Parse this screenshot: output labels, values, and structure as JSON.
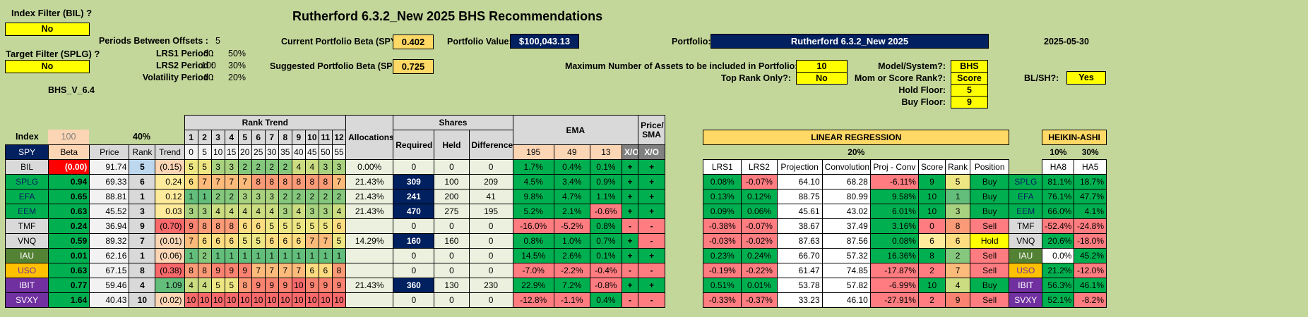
{
  "title": "Rutherford 6.3.2_New 2025 BHS Recommendations",
  "index_filter": {
    "label": "Index Filter (BIL) ?",
    "value": "No"
  },
  "target_filter": {
    "label": "Target Filter (SPLG) ?",
    "value": "No"
  },
  "version": "BHS_V_6.4",
  "periods_between_offsets": {
    "label": "Periods Between Offsets :",
    "value": "5"
  },
  "lrs1_period": {
    "label": "LRS1 Period :",
    "value": "60",
    "pct": "50%"
  },
  "lrs2_period": {
    "label": "LRS2 Period :",
    "value": "100",
    "pct": "30%"
  },
  "volatility_period": {
    "label": "Volatility Period :",
    "value": "10",
    "pct": "20%"
  },
  "current_beta": {
    "label": "Current Portfolio Beta (SPY):",
    "value": "0.402"
  },
  "suggested_beta": {
    "label": "Suggested Portfolio Beta (SPY):",
    "value": "0.725"
  },
  "portfolio_value": {
    "label": "Portfolio Value:",
    "value": "$100,043.13"
  },
  "portfolio": {
    "label": "Portfolio:",
    "value": "Rutherford 6.3.2_New 2025"
  },
  "date": "2025-05-30",
  "max_assets": {
    "label": "Maximum Number of Assets to be included in Portfolio:",
    "value": "10"
  },
  "top_rank_only": {
    "label": "Top Rank Only?:",
    "value": "No"
  },
  "model": {
    "label": "Model/System?:",
    "value": "BHS"
  },
  "mom_score": {
    "label": "Mom or Score Rank?:",
    "value": "Score"
  },
  "hold_floor": {
    "label": "Hold Floor:",
    "value": "5"
  },
  "buy_floor": {
    "label": "Buy Floor:",
    "value": "9"
  },
  "blsh": {
    "label": "BL/SH?:",
    "value": "Yes"
  },
  "index_row": {
    "label": "Index",
    "beta_hdr": "100",
    "pct": "40%"
  },
  "headers": {
    "spy": "SPY",
    "beta": "Beta",
    "price": "Price",
    "rank": "Rank",
    "trend": "Trend",
    "rank_trend": "Rank Trend",
    "allocations": "Allocations",
    "shares": "Shares",
    "required": "Required",
    "held": "Held",
    "difference": "Difference",
    "ema": "EMA",
    "e195": "195",
    "e49": "49",
    "e13": "13",
    "xo": "X/O",
    "price_sma": "Price/ SMA",
    "xo2": "X/O",
    "linreg": "LINEAR REGRESSION",
    "lr_pct": "20%",
    "lrs1": "LRS1",
    "lrs2": "LRS2",
    "projection": "Projection",
    "convolution": "Convolution",
    "projconv": "Proj - Conv",
    "score": "Score",
    "rank2": "Rank",
    "position": "Position",
    "heikin": "HEIKIN-ASHI",
    "ha8pct": "10%",
    "ha5pct": "30%",
    "ha8": "HA8",
    "ha5": "HA5"
  },
  "rt_nums": [
    "1",
    "2",
    "3",
    "4",
    "5",
    "6",
    "7",
    "8",
    "9",
    "10",
    "11",
    "12"
  ],
  "rt_offs": [
    "0",
    "5",
    "10",
    "15",
    "20",
    "25",
    "30",
    "35",
    "40",
    "45",
    "50",
    "55"
  ],
  "rows": [
    {
      "sym": "BIL",
      "beta": "(0.00)",
      "price": "91.74",
      "rank": "5",
      "trend": "(0.15)",
      "rt": [
        "5",
        "5",
        "3",
        "3",
        "2",
        "2",
        "2",
        "2",
        "4",
        "4",
        "3",
        "3"
      ],
      "alloc": "0.00%",
      "req": "0",
      "held": "0",
      "diff": "0",
      "e195": "1.7%",
      "e49": "0.4%",
      "e13": "0.1%",
      "xo": "+",
      "ps": "+",
      "lrs1": "",
      "lrs2": "",
      "proj": "",
      "conv": "",
      "pc": "",
      "score": "",
      "rank2": "",
      "pos": "",
      "sym2": "",
      "ha8": "",
      "ha5": ""
    },
    {
      "sym": "SPLG",
      "beta": "0.94",
      "price": "69.33",
      "rank": "6",
      "trend": "0.24",
      "rt": [
        "6",
        "7",
        "7",
        "7",
        "7",
        "8",
        "8",
        "8",
        "8",
        "8",
        "8",
        "7"
      ],
      "alloc": "21.43%",
      "req": "309",
      "held": "100",
      "diff": "209",
      "e195": "4.5%",
      "e49": "3.4%",
      "e13": "0.9%",
      "xo": "+",
      "ps": "+",
      "lrs1": "0.08%",
      "lrs2": "-0.07%",
      "proj": "64.10",
      "conv": "68.28",
      "pc": "-6.11%",
      "score": "9",
      "rank2": "5",
      "pos": "Buy",
      "sym2": "SPLG",
      "ha8": "81.1%",
      "ha5": "18.7%"
    },
    {
      "sym": "EFA",
      "beta": "0.65",
      "price": "88.81",
      "rank": "1",
      "trend": "0.12",
      "rt": [
        "1",
        "1",
        "2",
        "2",
        "3",
        "3",
        "3",
        "2",
        "2",
        "2",
        "2",
        "2"
      ],
      "alloc": "21.43%",
      "req": "241",
      "held": "200",
      "diff": "41",
      "e195": "9.8%",
      "e49": "4.7%",
      "e13": "1.1%",
      "xo": "+",
      "ps": "+",
      "lrs1": "0.13%",
      "lrs2": "0.12%",
      "proj": "88.75",
      "conv": "80.99",
      "pc": "9.58%",
      "score": "10",
      "rank2": "1",
      "pos": "Buy",
      "sym2": "EFA",
      "ha8": "76.1%",
      "ha5": "47.7%"
    },
    {
      "sym": "EEM",
      "beta": "0.63",
      "price": "45.52",
      "rank": "3",
      "trend": "0.03",
      "rt": [
        "3",
        "3",
        "4",
        "4",
        "4",
        "4",
        "4",
        "3",
        "4",
        "3",
        "3",
        "4"
      ],
      "alloc": "21.43%",
      "req": "470",
      "held": "275",
      "diff": "195",
      "e195": "5.2%",
      "e49": "2.1%",
      "e13": "-0.6%",
      "xo": "+",
      "ps": "+",
      "lrs1": "0.09%",
      "lrs2": "0.06%",
      "proj": "45.61",
      "conv": "43.02",
      "pc": "6.01%",
      "score": "10",
      "rank2": "3",
      "pos": "Buy",
      "sym2": "EEM",
      "ha8": "66.0%",
      "ha5": "4.1%"
    },
    {
      "sym": "TMF",
      "beta": "0.24",
      "price": "36.94",
      "rank": "9",
      "trend": "(0.70)",
      "rt": [
        "9",
        "8",
        "8",
        "8",
        "6",
        "6",
        "5",
        "5",
        "5",
        "5",
        "5",
        "6"
      ],
      "alloc": "",
      "req": "0",
      "held": "0",
      "diff": "0",
      "e195": "-16.0%",
      "e49": "-5.2%",
      "e13": "0.8%",
      "xo": "-",
      "ps": "-",
      "lrs1": "-0.38%",
      "lrs2": "-0.07%",
      "proj": "38.67",
      "conv": "37.49",
      "pc": "3.16%",
      "score": "0",
      "rank2": "8",
      "pos": "Sell",
      "sym2": "TMF",
      "ha8": "-52.4%",
      "ha5": "-24.8%"
    },
    {
      "sym": "VNQ",
      "beta": "0.59",
      "price": "89.32",
      "rank": "7",
      "trend": "(0.01)",
      "rt": [
        "7",
        "6",
        "6",
        "6",
        "5",
        "5",
        "6",
        "6",
        "6",
        "7",
        "7",
        "5"
      ],
      "alloc": "14.29%",
      "req": "160",
      "held": "160",
      "diff": "0",
      "e195": "0.8%",
      "e49": "1.0%",
      "e13": "0.7%",
      "xo": "+",
      "ps": "-",
      "lrs1": "-0.03%",
      "lrs2": "-0.02%",
      "proj": "87.63",
      "conv": "87.56",
      "pc": "0.08%",
      "score": "6",
      "rank2": "6",
      "pos": "Hold",
      "sym2": "VNQ",
      "ha8": "20.6%",
      "ha5": "-18.0%"
    },
    {
      "sym": "IAU",
      "beta": "0.01",
      "price": "62.16",
      "rank": "1",
      "trend": "(0.06)",
      "rt": [
        "1",
        "2",
        "1",
        "1",
        "1",
        "1",
        "1",
        "1",
        "1",
        "1",
        "1",
        "1"
      ],
      "alloc": "",
      "req": "0",
      "held": "0",
      "diff": "0",
      "e195": "14.5%",
      "e49": "2.6%",
      "e13": "0.1%",
      "xo": "+",
      "ps": "+",
      "lrs1": "0.23%",
      "lrs2": "0.24%",
      "proj": "66.70",
      "conv": "57.32",
      "pc": "16.36%",
      "score": "8",
      "rank2": "2",
      "pos": "Sell",
      "sym2": "IAU",
      "ha8": "0.0%",
      "ha5": "45.2%"
    },
    {
      "sym": "USO",
      "beta": "0.63",
      "price": "67.15",
      "rank": "8",
      "trend": "(0.38)",
      "rt": [
        "8",
        "8",
        "9",
        "9",
        "9",
        "7",
        "7",
        "7",
        "7",
        "6",
        "6",
        "8"
      ],
      "alloc": "",
      "req": "0",
      "held": "0",
      "diff": "0",
      "e195": "-7.0%",
      "e49": "-2.2%",
      "e13": "-0.4%",
      "xo": "-",
      "ps": "-",
      "lrs1": "-0.19%",
      "lrs2": "-0.22%",
      "proj": "61.47",
      "conv": "74.85",
      "pc": "-17.87%",
      "score": "2",
      "rank2": "7",
      "pos": "Sell",
      "sym2": "USO",
      "ha8": "21.2%",
      "ha5": "-12.0%"
    },
    {
      "sym": "IBIT",
      "beta": "0.77",
      "price": "59.46",
      "rank": "4",
      "trend": "1.09",
      "rt": [
        "4",
        "4",
        "5",
        "5",
        "8",
        "9",
        "9",
        "9",
        "10",
        "9",
        "9",
        "9"
      ],
      "alloc": "21.43%",
      "req": "360",
      "held": "130",
      "diff": "230",
      "e195": "22.9%",
      "e49": "7.2%",
      "e13": "-0.8%",
      "xo": "+",
      "ps": "+",
      "lrs1": "0.51%",
      "lrs2": "0.01%",
      "proj": "53.78",
      "conv": "57.82",
      "pc": "-6.99%",
      "score": "10",
      "rank2": "4",
      "pos": "Buy",
      "sym2": "IBIT",
      "ha8": "56.3%",
      "ha5": "46.1%"
    },
    {
      "sym": "SVXY",
      "beta": "1.64",
      "price": "40.43",
      "rank": "10",
      "trend": "(0.02)",
      "rt": [
        "10",
        "10",
        "10",
        "10",
        "10",
        "10",
        "10",
        "10",
        "10",
        "10",
        "10",
        "10"
      ],
      "alloc": "",
      "req": "0",
      "held": "0",
      "diff": "0",
      "e195": "-12.8%",
      "e49": "-1.1%",
      "e13": "0.4%",
      "xo": "-",
      "ps": "-",
      "lrs1": "-0.33%",
      "lrs2": "-0.37%",
      "proj": "33.23",
      "conv": "46.10",
      "pc": "-27.91%",
      "score": "2",
      "rank2": "9",
      "pos": "Sell",
      "sym2": "SVXY",
      "ha8": "52.1%",
      "ha5": "-8.2%"
    }
  ],
  "colors": {
    "sym": {
      "BIL": "#d9d9d9",
      "SPLG": "#00b050",
      "EFA": "#00b050",
      "EEM": "#00b050",
      "TMF": "#d9d9d9",
      "VNQ": "#d9d9d9",
      "IAU": "#548235",
      "USO": "#ffc000",
      "IBIT": "#7030a0",
      "SVXY": "#7030a0"
    },
    "rank": {
      "1": "#63be7b",
      "2": "#85c87d",
      "3": "#a8d27f",
      "4": "#cbdc81",
      "5": "#eee683",
      "6": "#fedd81",
      "7": "#fcbb7b",
      "8": "#fb9a76",
      "9": "#f98370",
      "10": "#f8696b"
    }
  }
}
